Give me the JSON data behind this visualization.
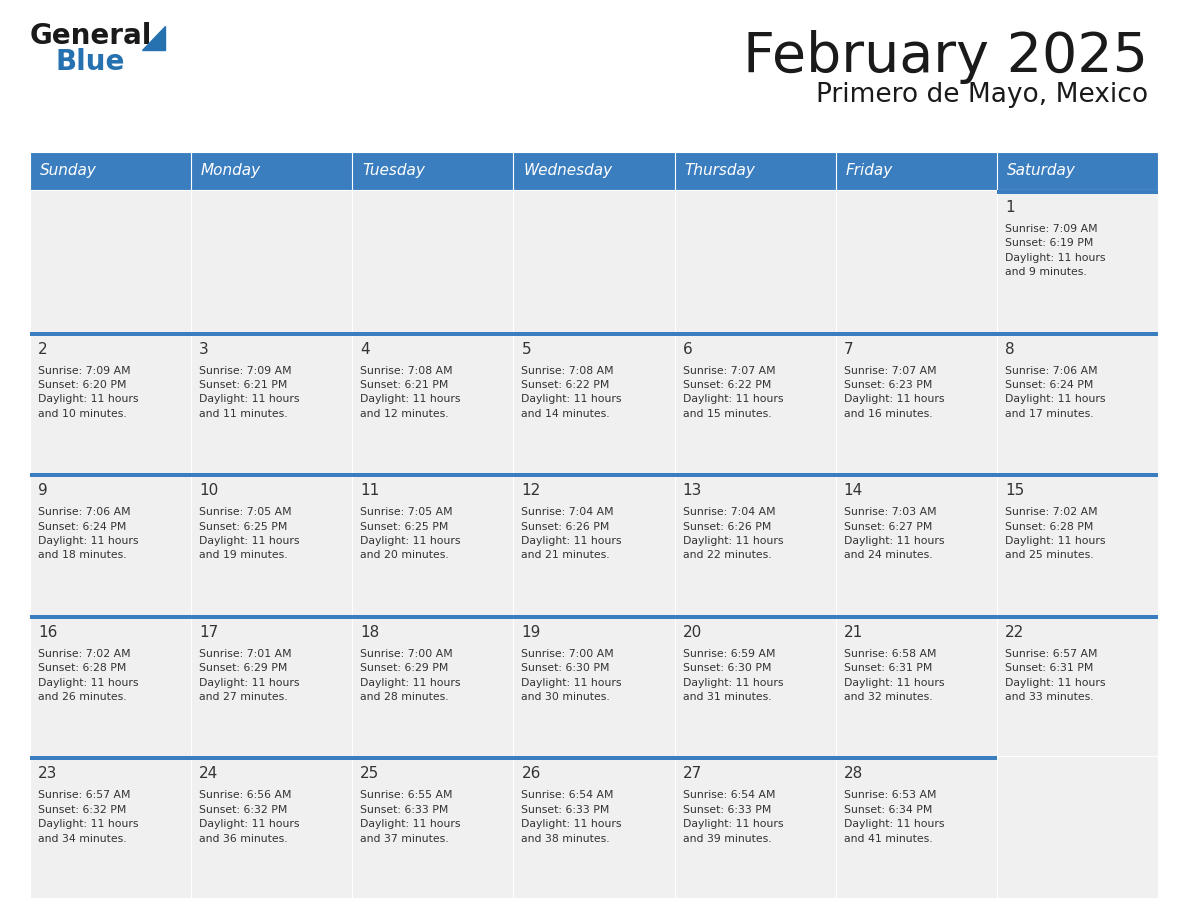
{
  "title": "February 2025",
  "subtitle": "Primero de Mayo, Mexico",
  "days_of_week": [
    "Sunday",
    "Monday",
    "Tuesday",
    "Wednesday",
    "Thursday",
    "Friday",
    "Saturday"
  ],
  "header_bg": "#3a7ebf",
  "header_text_color": "#ffffff",
  "cell_bg_light": "#f0f0f0",
  "separator_color": "#3a7ebf",
  "text_color": "#333333",
  "day_num_color": "#333333",
  "calendar_data": [
    [
      null,
      null,
      null,
      null,
      null,
      null,
      {
        "day": "1",
        "sunrise": "7:09 AM",
        "sunset": "6:19 PM",
        "daylight": "11 hours\nand 9 minutes."
      }
    ],
    [
      {
        "day": "2",
        "sunrise": "7:09 AM",
        "sunset": "6:20 PM",
        "daylight": "11 hours\nand 10 minutes."
      },
      {
        "day": "3",
        "sunrise": "7:09 AM",
        "sunset": "6:21 PM",
        "daylight": "11 hours\nand 11 minutes."
      },
      {
        "day": "4",
        "sunrise": "7:08 AM",
        "sunset": "6:21 PM",
        "daylight": "11 hours\nand 12 minutes."
      },
      {
        "day": "5",
        "sunrise": "7:08 AM",
        "sunset": "6:22 PM",
        "daylight": "11 hours\nand 14 minutes."
      },
      {
        "day": "6",
        "sunrise": "7:07 AM",
        "sunset": "6:22 PM",
        "daylight": "11 hours\nand 15 minutes."
      },
      {
        "day": "7",
        "sunrise": "7:07 AM",
        "sunset": "6:23 PM",
        "daylight": "11 hours\nand 16 minutes."
      },
      {
        "day": "8",
        "sunrise": "7:06 AM",
        "sunset": "6:24 PM",
        "daylight": "11 hours\nand 17 minutes."
      }
    ],
    [
      {
        "day": "9",
        "sunrise": "7:06 AM",
        "sunset": "6:24 PM",
        "daylight": "11 hours\nand 18 minutes."
      },
      {
        "day": "10",
        "sunrise": "7:05 AM",
        "sunset": "6:25 PM",
        "daylight": "11 hours\nand 19 minutes."
      },
      {
        "day": "11",
        "sunrise": "7:05 AM",
        "sunset": "6:25 PM",
        "daylight": "11 hours\nand 20 minutes."
      },
      {
        "day": "12",
        "sunrise": "7:04 AM",
        "sunset": "6:26 PM",
        "daylight": "11 hours\nand 21 minutes."
      },
      {
        "day": "13",
        "sunrise": "7:04 AM",
        "sunset": "6:26 PM",
        "daylight": "11 hours\nand 22 minutes."
      },
      {
        "day": "14",
        "sunrise": "7:03 AM",
        "sunset": "6:27 PM",
        "daylight": "11 hours\nand 24 minutes."
      },
      {
        "day": "15",
        "sunrise": "7:02 AM",
        "sunset": "6:28 PM",
        "daylight": "11 hours\nand 25 minutes."
      }
    ],
    [
      {
        "day": "16",
        "sunrise": "7:02 AM",
        "sunset": "6:28 PM",
        "daylight": "11 hours\nand 26 minutes."
      },
      {
        "day": "17",
        "sunrise": "7:01 AM",
        "sunset": "6:29 PM",
        "daylight": "11 hours\nand 27 minutes."
      },
      {
        "day": "18",
        "sunrise": "7:00 AM",
        "sunset": "6:29 PM",
        "daylight": "11 hours\nand 28 minutes."
      },
      {
        "day": "19",
        "sunrise": "7:00 AM",
        "sunset": "6:30 PM",
        "daylight": "11 hours\nand 30 minutes."
      },
      {
        "day": "20",
        "sunrise": "6:59 AM",
        "sunset": "6:30 PM",
        "daylight": "11 hours\nand 31 minutes."
      },
      {
        "day": "21",
        "sunrise": "6:58 AM",
        "sunset": "6:31 PM",
        "daylight": "11 hours\nand 32 minutes."
      },
      {
        "day": "22",
        "sunrise": "6:57 AM",
        "sunset": "6:31 PM",
        "daylight": "11 hours\nand 33 minutes."
      }
    ],
    [
      {
        "day": "23",
        "sunrise": "6:57 AM",
        "sunset": "6:32 PM",
        "daylight": "11 hours\nand 34 minutes."
      },
      {
        "day": "24",
        "sunrise": "6:56 AM",
        "sunset": "6:32 PM",
        "daylight": "11 hours\nand 36 minutes."
      },
      {
        "day": "25",
        "sunrise": "6:55 AM",
        "sunset": "6:33 PM",
        "daylight": "11 hours\nand 37 minutes."
      },
      {
        "day": "26",
        "sunrise": "6:54 AM",
        "sunset": "6:33 PM",
        "daylight": "11 hours\nand 38 minutes."
      },
      {
        "day": "27",
        "sunrise": "6:54 AM",
        "sunset": "6:33 PM",
        "daylight": "11 hours\nand 39 minutes."
      },
      {
        "day": "28",
        "sunrise": "6:53 AM",
        "sunset": "6:34 PM",
        "daylight": "11 hours\nand 41 minutes."
      },
      null
    ]
  ],
  "fig_width": 11.88,
  "fig_height": 9.18,
  "dpi": 100
}
